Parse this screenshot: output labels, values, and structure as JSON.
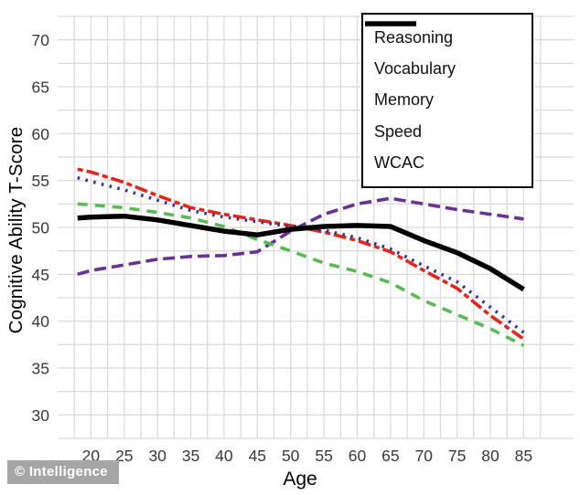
{
  "chart_data": {
    "type": "line",
    "title": "",
    "xlabel": "Age",
    "ylabel": "Cognitive Ability T-Score",
    "x": [
      18,
      20,
      25,
      30,
      35,
      40,
      45,
      50,
      55,
      60,
      65,
      70,
      75,
      80,
      85
    ],
    "series": [
      {
        "name": "Reasoning",
        "color": "#E3251C",
        "dash": "6 4 14 4",
        "legend_dash": "9 6 24 6",
        "width": 3.6,
        "values": [
          56.2,
          55.9,
          54.8,
          53.4,
          52.1,
          51.4,
          50.8,
          50.2,
          49.5,
          48.6,
          47.4,
          45.4,
          43.5,
          40.6,
          38.1
        ]
      },
      {
        "name": "Vocabulary",
        "color": "#6A3191",
        "dash": "13 6",
        "legend_dash": "32 8 5 8",
        "width": 3.6,
        "values": [
          45.0,
          45.4,
          46.0,
          46.6,
          46.9,
          47.0,
          47.4,
          49.6,
          51.4,
          52.5,
          53.1,
          52.5,
          51.9,
          51.4,
          50.9
        ]
      },
      {
        "name": "Memory",
        "color": "#333293",
        "dash": "2.5 6.5",
        "legend_dash": "4 13",
        "width": 3.6,
        "values": [
          55.3,
          54.9,
          54.0,
          52.9,
          51.8,
          51.1,
          50.6,
          50.1,
          49.7,
          48.9,
          47.7,
          45.9,
          44.2,
          41.5,
          38.8
        ]
      },
      {
        "name": "Speed",
        "color": "#57BB54",
        "dash": "11 8",
        "legend_dash": "17 15",
        "width": 3.6,
        "values": [
          52.5,
          52.4,
          52.1,
          51.6,
          51.0,
          50.1,
          48.7,
          47.5,
          46.2,
          45.3,
          44.1,
          42.2,
          40.7,
          39.2,
          37.4
        ]
      },
      {
        "name": "WCAC",
        "color": "#000000",
        "dash": "",
        "legend_dash": "",
        "width": 5.5,
        "values": [
          51.0,
          51.1,
          51.2,
          50.8,
          50.2,
          49.6,
          49.2,
          49.8,
          50.1,
          50.2,
          50.1,
          48.6,
          47.3,
          45.6,
          43.4
        ]
      }
    ],
    "xlim": [
      15,
      92.5
    ],
    "ylim": [
      27.5,
      72.5
    ],
    "x_ticks": [
      20,
      25,
      30,
      35,
      40,
      45,
      50,
      55,
      60,
      65,
      70,
      75,
      80,
      85
    ],
    "y_ticks": [
      30,
      35,
      40,
      45,
      50,
      55,
      60,
      65,
      70
    ],
    "grid": {
      "color": "#DBDBDB",
      "step": 2.5,
      "x_start": 17.5,
      "x_end": 87.5,
      "y_start": 27.5,
      "y_end": 72.5,
      "on": true
    },
    "legend_position": "top-right"
  },
  "watermark": {
    "text": "© Intelligence"
  },
  "colors": {
    "background": "#FFFFFF",
    "tick_label": "#383838",
    "axis_title": "#000000"
  }
}
